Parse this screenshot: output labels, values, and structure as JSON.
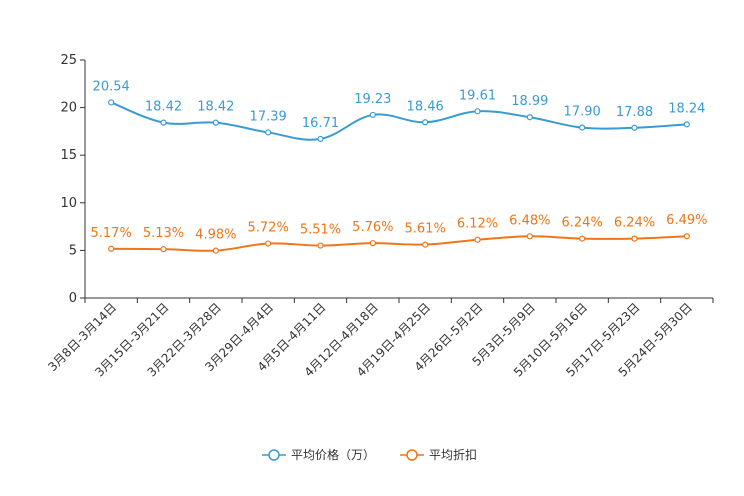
{
  "chart_data": {
    "type": "line",
    "title": "",
    "xlabel": "",
    "ylabel": "",
    "ylim": [
      0,
      25
    ],
    "yticks": [
      "0",
      "5",
      "10",
      "15",
      "20",
      "25"
    ],
    "grid": false,
    "legend_position": "bottom-center",
    "categories": [
      "3月8日-3月14日",
      "3月15日-3月21日",
      "3月22日-3月28日",
      "3月29日-4月4日",
      "4月5日-4月11日",
      "4月12日-4月18日",
      "4月19日-4月25日",
      "4月26日-5月2日",
      "5月3日-5月9日",
      "5月10日-5月16日",
      "5月17日-5月23日",
      "5月24日-5月30日"
    ],
    "series": [
      {
        "name": "平均价格（万）",
        "color": "#3a9bd1",
        "values": [
          20.54,
          18.42,
          18.42,
          17.39,
          16.71,
          19.23,
          18.46,
          19.61,
          18.99,
          17.9,
          17.88,
          18.24
        ],
        "labels": [
          "20.54",
          "18.42",
          "18.42",
          "17.39",
          "16.71",
          "19.23",
          "18.46",
          "19.61",
          "18.99",
          "17.90",
          "17.88",
          "18.24"
        ]
      },
      {
        "name": "平均折扣",
        "color": "#f07518",
        "values": [
          5.17,
          5.13,
          4.98,
          5.72,
          5.51,
          5.76,
          5.61,
          6.12,
          6.48,
          6.24,
          6.24,
          6.49
        ],
        "labels": [
          "5.17%",
          "5.13%",
          "4.98%",
          "5.72%",
          "5.51%",
          "5.76%",
          "5.61%",
          "6.12%",
          "6.48%",
          "6.24%",
          "6.24%",
          "6.49%"
        ]
      }
    ]
  }
}
